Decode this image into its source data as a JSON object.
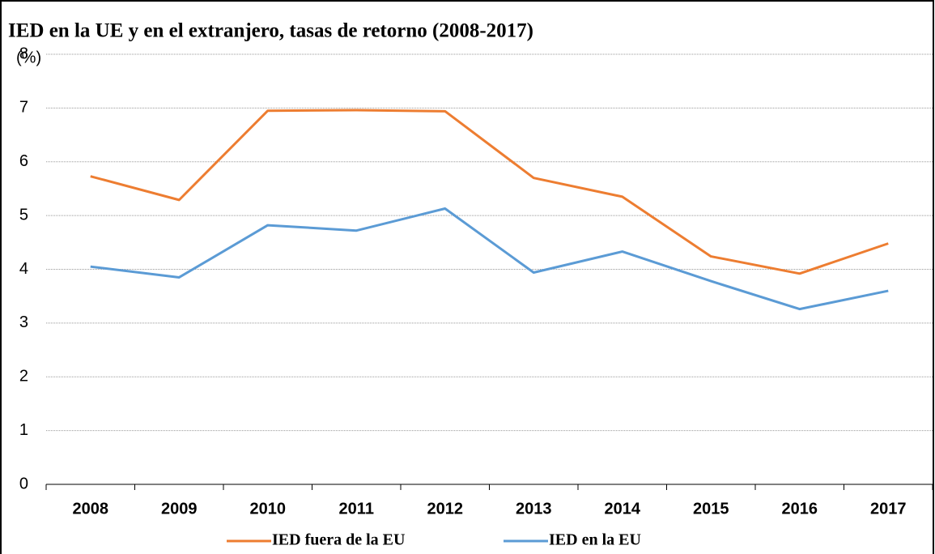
{
  "chart_data": {
    "type": "line",
    "title": "IED en la UE y en el extranjero, tasas de retorno (2008-2017)",
    "y_label": "(%)",
    "categories": [
      "2008",
      "2009",
      "2010",
      "2011",
      "2012",
      "2013",
      "2014",
      "2015",
      "2016",
      "2017"
    ],
    "series": [
      {
        "name": "IED fuera de la EU",
        "color": "#ed7d31",
        "values": [
          5.73,
          5.29,
          6.95,
          6.96,
          6.94,
          5.7,
          5.35,
          4.24,
          3.92,
          4.48
        ]
      },
      {
        "name": "IED en la EU",
        "color": "#5b9bd5",
        "values": [
          4.05,
          3.85,
          4.82,
          4.72,
          5.13,
          3.94,
          4.33,
          3.78,
          3.26,
          3.6
        ]
      }
    ],
    "ylim": [
      0,
      8
    ],
    "yticks": [
      0,
      1,
      2,
      3,
      4,
      5,
      6,
      7,
      8
    ],
    "grid": true,
    "legend": "bottom"
  }
}
